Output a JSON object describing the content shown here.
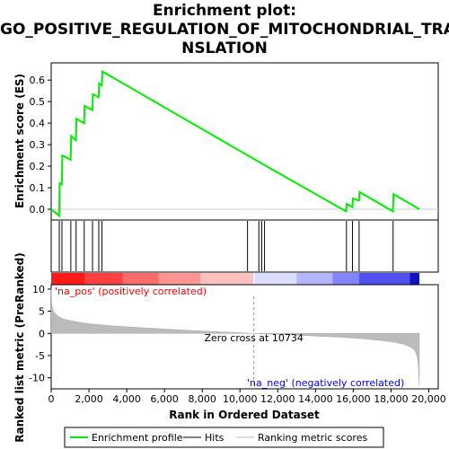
{
  "chart_data": {
    "type": "line",
    "title_lines": [
      "Enrichment plot:",
      "GO_POSITIVE_REGULATION_OF_MITOCHONDRIAL_TRA",
      "NSLATION"
    ],
    "es_panel": {
      "ylabel": "Enrichment score (ES)",
      "ylim": [
        -0.05,
        0.68
      ],
      "yticks": [
        "0.0",
        "0.1",
        "0.2",
        "0.3",
        "0.4",
        "0.5",
        "0.6"
      ],
      "ytick_values": [
        0.0,
        0.1,
        0.2,
        0.3,
        0.4,
        0.5,
        0.6
      ],
      "series": [
        {
          "name": "Enrichment profile",
          "color": "#00ee00",
          "x": [
            0,
            420,
            450,
            560,
            590,
            1030,
            1060,
            1310,
            1340,
            1740,
            1770,
            2180,
            2210,
            2510,
            2540,
            2680,
            2710,
            11000,
            11300,
            15620,
            15650,
            15950,
            15980,
            16300,
            16330,
            18100,
            18130,
            19500
          ],
          "y": [
            0.0,
            -0.03,
            0.12,
            0.115,
            0.25,
            0.23,
            0.34,
            0.32,
            0.42,
            0.4,
            0.48,
            0.46,
            0.535,
            0.52,
            0.585,
            0.575,
            0.64,
            0.22,
            0.205,
            -0.01,
            0.025,
            0.01,
            0.05,
            0.04,
            0.08,
            -0.01,
            0.07,
            0.0
          ]
        }
      ]
    },
    "hits_panel": {
      "hit_ranks": [
        430,
        570,
        1040,
        1320,
        1750,
        2190,
        2520,
        2690,
        10400,
        11000,
        11150,
        11300,
        15640,
        15960,
        16310,
        18110
      ]
    },
    "heatbar": {
      "segments": [
        {
          "start": 0,
          "end": 1800,
          "color": "#ff1a1a"
        },
        {
          "start": 1800,
          "end": 3800,
          "color": "#ff4040"
        },
        {
          "start": 3800,
          "end": 5700,
          "color": "#ff6a6a"
        },
        {
          "start": 5700,
          "end": 7900,
          "color": "#ff9494"
        },
        {
          "start": 7900,
          "end": 10700,
          "color": "#ffc0c0"
        },
        {
          "start": 10700,
          "end": 10800,
          "color": "#f5f0ff"
        },
        {
          "start": 10800,
          "end": 13000,
          "color": "#dcdcff"
        },
        {
          "start": 13000,
          "end": 14900,
          "color": "#b4b4ff"
        },
        {
          "start": 14900,
          "end": 16300,
          "color": "#8484ff"
        },
        {
          "start": 16300,
          "end": 19000,
          "color": "#5050ee"
        },
        {
          "start": 19000,
          "end": 19500,
          "color": "#1010c0"
        }
      ]
    },
    "metric_panel": {
      "ylabel": "Ranked list metric (PreRanked)",
      "ylim": [
        -12.5,
        11
      ],
      "yticks": [
        "10",
        "5",
        "0",
        "-5",
        "-10"
      ],
      "ytick_values": [
        10,
        5,
        0,
        -5,
        -10
      ],
      "curve_x": [
        0,
        30,
        100,
        200,
        400,
        700,
        1000,
        1500,
        2000,
        3000,
        4000,
        5000,
        6000,
        7000,
        8000,
        9000,
        10000,
        10734,
        11500,
        12500,
        13500,
        14500,
        15500,
        16500,
        17500,
        18200,
        18700,
        19000,
        19200,
        19300,
        19400,
        19450,
        19500
      ],
      "curve_y": [
        10.2,
        6.5,
        5.2,
        4.5,
        3.8,
        3.2,
        2.9,
        2.5,
        2.2,
        1.8,
        1.5,
        1.25,
        1.0,
        0.75,
        0.55,
        0.35,
        0.15,
        0.0,
        -0.15,
        -0.3,
        -0.5,
        -0.7,
        -0.9,
        -1.2,
        -1.6,
        -2.0,
        -2.5,
        -3.0,
        -3.6,
        -4.2,
        -5.5,
        -7.5,
        -11.8
      ],
      "zero_cross_label": "Zero cross at 10734",
      "zero_cross_rank": 10734,
      "pos_label": "'na_pos' (positively correlated)",
      "neg_label": "'na_neg' (negatively correlated)"
    },
    "xaxis": {
      "xlabel": "Rank in Ordered Dataset",
      "xlim": [
        0,
        20500
      ],
      "xticks": [
        "0",
        "2,000",
        "4,000",
        "6,000",
        "8,000",
        "10,000",
        "12,000",
        "14,000",
        "16,000",
        "18,000",
        "20,000"
      ],
      "xtick_values": [
        0,
        2000,
        4000,
        6000,
        8000,
        10000,
        12000,
        14000,
        16000,
        18000,
        20000
      ]
    },
    "legend": {
      "placement": "bottom",
      "items": [
        {
          "label": "Enrichment profile",
          "color": "#00ee00"
        },
        {
          "label": "Hits",
          "color": "#000000"
        },
        {
          "label": "Ranking metric scores",
          "color": "#bbbbbb"
        }
      ]
    },
    "colors": {
      "pos_label": "#ff0000",
      "neg_label": "#0000ff",
      "metric_fill": "#bbbbbb"
    }
  }
}
